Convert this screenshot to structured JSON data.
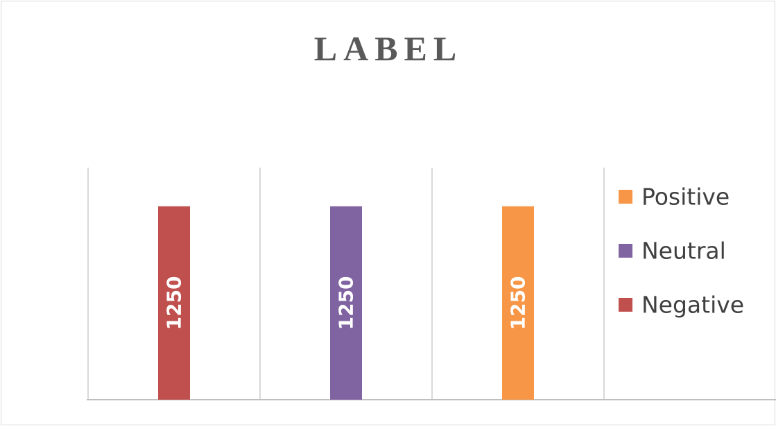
{
  "chart_data": {
    "type": "bar",
    "title": "LABEL",
    "xlabel": "",
    "ylabel": "",
    "ylim": [
      0,
      1500
    ],
    "categories": [
      ""
    ],
    "series": [
      {
        "name": "Negative",
        "values": [
          1250
        ],
        "color": "#c0504d"
      },
      {
        "name": "Neutral",
        "values": [
          1250
        ],
        "color": "#8064a2"
      },
      {
        "name": "Positive",
        "values": [
          1250
        ],
        "color": "#f79646"
      }
    ],
    "data_labels": true,
    "grid": "vertical",
    "legend_position": "right",
    "legend_order": [
      "Positive",
      "Neutral",
      "Negative"
    ]
  }
}
